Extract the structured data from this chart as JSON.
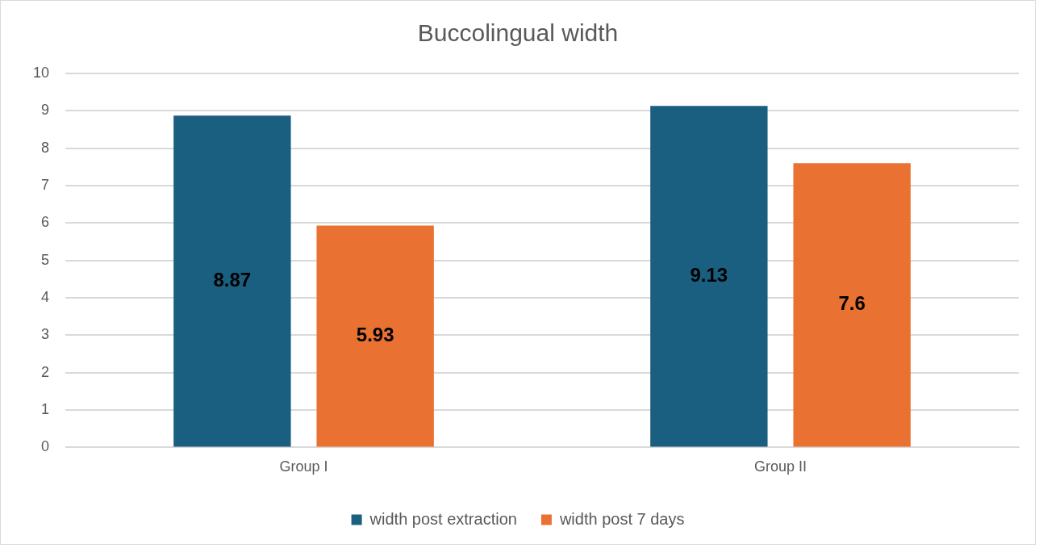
{
  "chart_data": {
    "type": "bar",
    "title": "Buccolingual width",
    "categories": [
      "Group I",
      "Group II"
    ],
    "series": [
      {
        "name": "width post extraction",
        "color": "#1a5e80",
        "values": [
          8.87,
          9.13
        ]
      },
      {
        "name": "width post 7 days",
        "color": "#e97132",
        "values": [
          5.93,
          7.6
        ]
      }
    ],
    "ylim": [
      0,
      10
    ],
    "yticks": [
      0,
      1,
      2,
      3,
      4,
      5,
      6,
      7,
      8,
      9,
      10
    ],
    "grid": "y",
    "legend": "bottom",
    "data_labels": true
  }
}
